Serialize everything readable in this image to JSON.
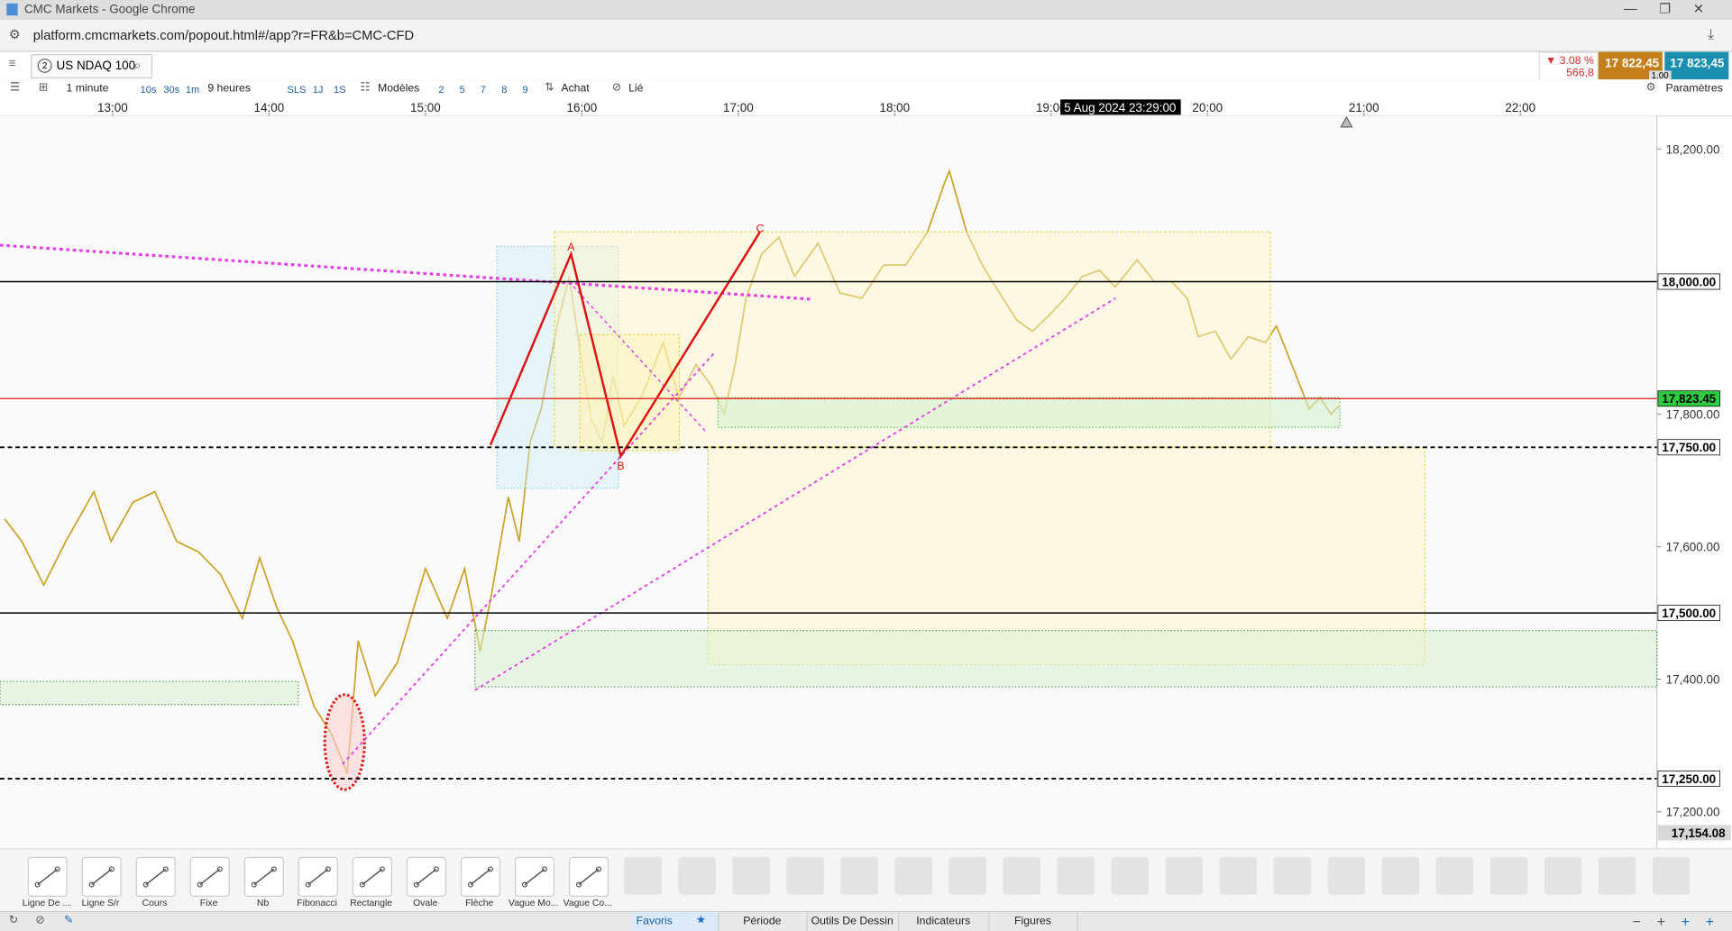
{
  "browser": {
    "title": "CMC Markets - Google Chrome",
    "url": "platform.cmcmarkets.com/popout.html#/app?r=FR&b=CMC-CFD"
  },
  "instrument_tab": {
    "badge": "2",
    "name": "US NDAQ 100"
  },
  "quote": {
    "change": "▼ 3.08 %",
    "points": "566,8",
    "sell": "17 822,45",
    "buy": "17 823,45",
    "size": "1.00"
  },
  "toolbar": {
    "interval": "1 minute",
    "intervals": [
      "10s",
      "30s",
      "1m"
    ],
    "range": "9 heures",
    "views": [
      "SLS",
      "1J",
      "1S"
    ],
    "templates": "Modèles",
    "template_slots": [
      "2",
      "5",
      "7",
      "8",
      "9"
    ],
    "buy": "Achat",
    "link": "Lié",
    "settings": "Paramètres"
  },
  "chart_data": {
    "type": "line",
    "color": "#c9a227",
    "x": [
      12.31,
      12.42,
      12.56,
      12.7,
      12.88,
      12.99,
      13.13,
      13.27,
      13.41,
      13.55,
      13.69,
      13.83,
      13.94,
      14.05,
      14.15,
      14.29,
      14.4,
      14.5,
      14.57,
      14.68,
      14.82,
      15.0,
      15.14,
      15.25,
      15.35,
      15.42,
      15.53,
      15.6,
      15.67,
      15.74,
      15.85,
      15.92,
      15.99,
      16.06,
      16.13,
      16.2,
      16.27,
      16.38,
      16.52,
      16.62,
      16.73,
      16.83,
      16.91,
      16.98,
      17.05,
      17.15,
      17.26,
      17.36,
      17.51,
      17.65,
      17.79,
      17.93,
      18.07,
      18.21,
      18.32,
      18.35,
      18.46,
      18.56,
      18.67,
      18.78,
      18.88,
      18.99,
      19.09,
      19.2,
      19.31,
      19.41,
      19.55,
      19.66,
      19.77,
      19.87,
      19.94,
      20.05,
      20.15,
      20.26,
      20.37,
      20.44,
      20.51,
      20.58,
      20.65,
      20.72,
      20.79,
      20.84
    ],
    "values": [
      17642,
      17608,
      17542,
      17608,
      17683,
      17608,
      17667,
      17683,
      17608,
      17592,
      17558,
      17492,
      17583,
      17508,
      17458,
      17358,
      17317,
      17258,
      17458,
      17375,
      17425,
      17567,
      17492,
      17567,
      17442,
      17525,
      17675,
      17608,
      17758,
      17808,
      17942,
      18008,
      17892,
      17792,
      17758,
      17858,
      17783,
      17825,
      17908,
      17825,
      17875,
      17842,
      17800,
      17875,
      17975,
      18042,
      18067,
      18008,
      18058,
      17983,
      17975,
      18025,
      18025,
      18075,
      18150,
      18167,
      18075,
      18025,
      17983,
      17942,
      17925,
      17950,
      17975,
      18008,
      18017,
      17992,
      18033,
      18000,
      18000,
      17975,
      17917,
      17925,
      17883,
      17917,
      17908,
      17933,
      17892,
      17850,
      17808,
      17825,
      17800,
      17812
    ],
    "xlim": [
      12.28,
      22.873
    ],
    "xticks": [
      {
        "value": 13,
        "label": "13:00"
      },
      {
        "value": 14,
        "label": "14:00"
      },
      {
        "value": 15,
        "label": "15:00"
      },
      {
        "value": 16,
        "label": "16:00"
      },
      {
        "value": 17,
        "label": "17:00"
      },
      {
        "value": 18,
        "label": "18:00"
      },
      {
        "value": 19,
        "label": "19:00"
      },
      {
        "value": 20,
        "label": "20:00"
      },
      {
        "value": 21,
        "label": "21:00"
      },
      {
        "value": 22,
        "label": "22:00"
      }
    ],
    "ylim": [
      17145,
      18250
    ],
    "yticks": [
      {
        "value": 18200,
        "label": "18,200.00"
      },
      {
        "value": 17800,
        "label": "17,800.00"
      },
      {
        "value": 17600,
        "label": "17,600.00"
      },
      {
        "value": 17400,
        "label": "17,400.00"
      },
      {
        "value": 17200,
        "label": "17,200.00"
      }
    ],
    "levels": [
      {
        "value": 18000,
        "label": "18,000.00",
        "color": "#000000",
        "style": "solid",
        "label_color": "#ffffff"
      },
      {
        "value": 17823.45,
        "label": "17,823.45",
        "color": "#e53935",
        "style": "solid",
        "label_color": "#2ecc40"
      },
      {
        "value": 17750,
        "label": "17,750.00",
        "color": "#000000",
        "style": "dashed",
        "label_color": "#ffffff"
      },
      {
        "value": 17500,
        "label": "17,500.00",
        "color": "#000000",
        "style": "solid",
        "label_color": "#ffffff"
      },
      {
        "value": 17250,
        "label": "17,250.00",
        "color": "#000000",
        "style": "dashed",
        "label_color": "#ffffff"
      }
    ],
    "scale_low": {
      "value": 17154.08,
      "label": "17,154.08"
    },
    "crosshair_label": "5 Aug 2024 23:29:00",
    "annotations": [
      "A",
      "B",
      "C"
    ]
  },
  "drawing_tools": [
    "Ligne De ...",
    "Ligne S/r",
    "Cours",
    "Fixe",
    "Nb",
    "Fibonacci",
    "Rectangle",
    "Ovale",
    "Flèche",
    "Vague Mo...",
    "Vague Co..."
  ],
  "bottom_tabs": [
    "Favoris",
    "Période",
    "Outils De Dessin",
    "Indicateurs",
    "Figures"
  ]
}
